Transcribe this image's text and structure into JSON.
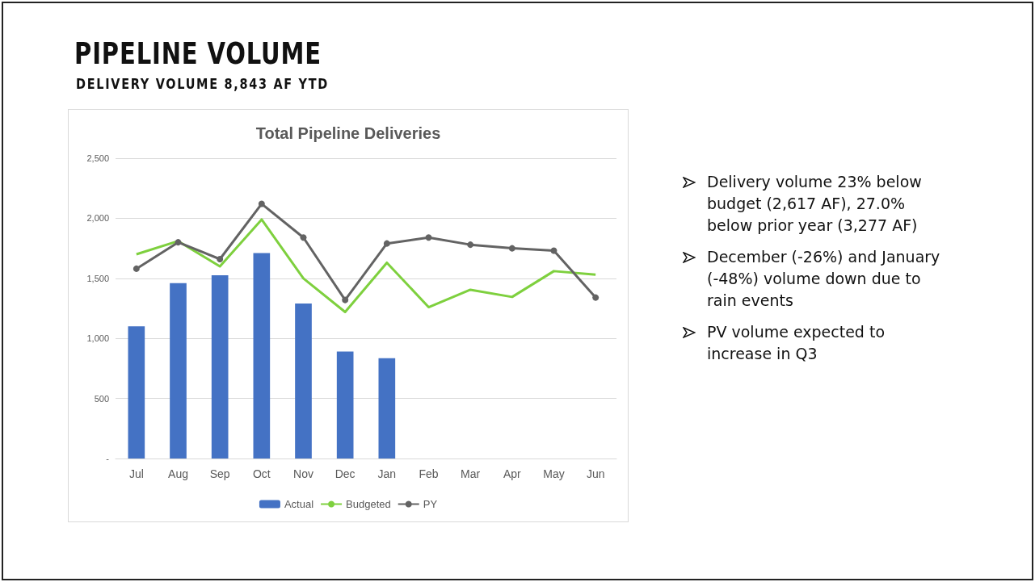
{
  "chart_data": {
    "type": "bar",
    "title": "Total Pipeline Deliveries",
    "categories": [
      "Jul",
      "Aug",
      "Sep",
      "Oct",
      "Nov",
      "Dec",
      "Jan",
      "Feb",
      "Mar",
      "Apr",
      "May",
      "Jun"
    ],
    "series": [
      {
        "name": "Actual",
        "color": "#4472c4",
        "values": [
          1100,
          1460,
          1525,
          1710,
          1290,
          890,
          835,
          null,
          null,
          null,
          null,
          null
        ]
      },
      {
        "name": "Budgeted",
        "type": "line",
        "color": "#7ed03e",
        "marker": "none",
        "values": [
          1700,
          1810,
          1600,
          1990,
          1500,
          1220,
          1630,
          1260,
          1405,
          1345,
          1560,
          1530
        ]
      },
      {
        "name": "PY",
        "type": "line",
        "color": "#636363",
        "marker": "circle",
        "values": [
          1580,
          1800,
          1660,
          2120,
          1840,
          1320,
          1790,
          1840,
          1780,
          1750,
          1730,
          1340
        ]
      }
    ],
    "ylim": [
      0,
      2500
    ],
    "yticks": [
      {
        "value": 0,
        "label": "-"
      },
      {
        "value": 500,
        "label": "500"
      },
      {
        "value": 1000,
        "label": "1,000"
      },
      {
        "value": 1500,
        "label": "1,500"
      },
      {
        "value": 2000,
        "label": "2,000"
      },
      {
        "value": 2500,
        "label": "2,500"
      }
    ],
    "grid": "y",
    "legend": "bottom",
    "annotations": [
      "PIPELINE VOLUME",
      "DELIVERY VOLUME 8,843 AF YTD",
      "Delivery volume 23% below budget (2,617 AF), 27.0% below prior year (3,277 AF)",
      "December (-26%) and January (-48%) volume down due to rain events",
      "PV volume expected to increase in Q3"
    ]
  }
}
